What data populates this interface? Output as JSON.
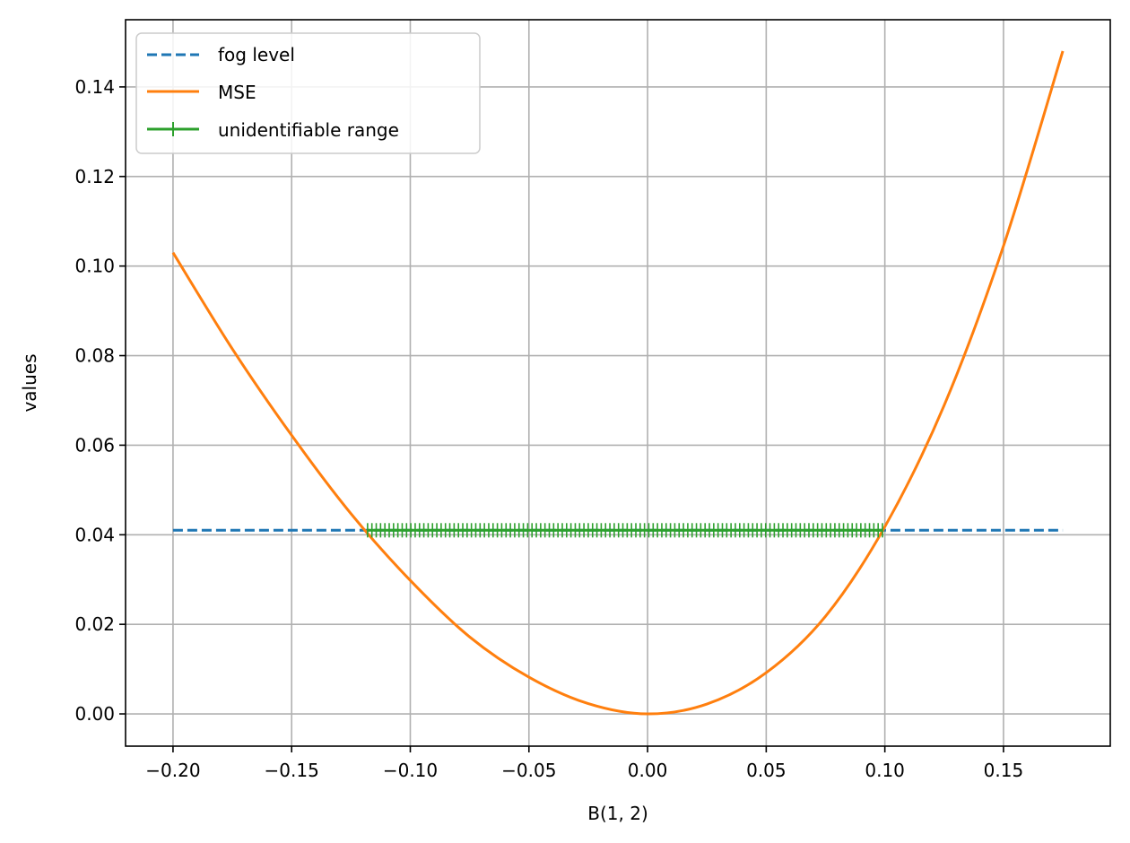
{
  "chart_data": {
    "type": "line",
    "xlabel": "B(1, 2)",
    "ylabel": "values",
    "xlim": [
      -0.22,
      0.195
    ],
    "ylim": [
      -0.0072,
      0.155
    ],
    "x_ticks": [
      -0.2,
      -0.15,
      -0.1,
      -0.05,
      0.0,
      0.05,
      0.1,
      0.15
    ],
    "x_tick_labels": [
      "−0.20",
      "−0.15",
      "−0.10",
      "−0.05",
      "0.00",
      "0.05",
      "0.10",
      "0.15"
    ],
    "y_ticks": [
      0.0,
      0.02,
      0.04,
      0.06,
      0.08,
      0.1,
      0.12,
      0.14
    ],
    "y_tick_labels": [
      "0.00",
      "0.02",
      "0.04",
      "0.06",
      "0.08",
      "0.10",
      "0.12",
      "0.14"
    ],
    "grid": true,
    "legend_position": "upper-left",
    "series": [
      {
        "name": "fog level",
        "style": "dashed",
        "color": "#1f77b4",
        "x": [
          -0.2,
          0.175
        ],
        "y": [
          0.041,
          0.041
        ]
      },
      {
        "name": "MSE",
        "style": "solid",
        "color": "#ff7f0e",
        "x": [
          -0.2,
          -0.175,
          -0.15,
          -0.125,
          -0.1,
          -0.075,
          -0.05,
          -0.025,
          0.0,
          0.025,
          0.05,
          0.075,
          0.1,
          0.125,
          0.15,
          0.175
        ],
        "y": [
          0.103,
          0.0815,
          0.0622,
          0.0447,
          0.0298,
          0.0172,
          0.0082,
          0.0023,
          0.0,
          0.0022,
          0.0092,
          0.0218,
          0.0418,
          0.0689,
          0.1045,
          0.148
        ]
      },
      {
        "name": "unidentifiable range",
        "style": "solid-plus-markers",
        "color": "#2ca02c",
        "x_start": -0.118,
        "x_end": 0.099,
        "marker_count": 120,
        "y": 0.041
      }
    ]
  }
}
